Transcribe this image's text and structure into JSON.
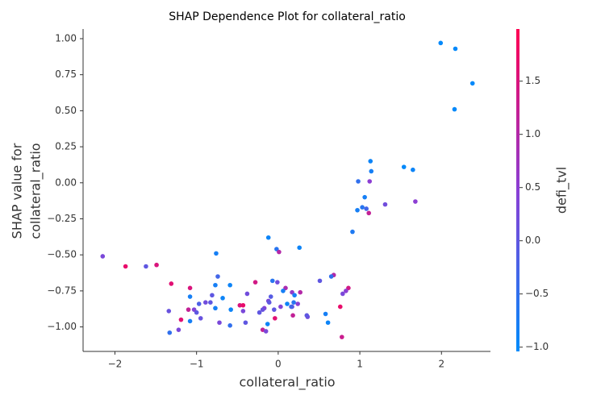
{
  "chart_data": {
    "type": "scatter",
    "title": "SHAP Dependence Plot for collateral_ratio",
    "xlabel": "collateral_ratio",
    "ylabel": [
      "SHAP value for",
      "collateral_ratio"
    ],
    "colorbar_label": "defi_tvl",
    "colormap": [
      "#008bfb",
      "#8a3fd5",
      "#ff0052"
    ],
    "clim": [
      -1.04,
      1.99
    ],
    "cticks": [
      {
        "value": -1.0,
        "label": "−1.0"
      },
      {
        "value": -0.5,
        "label": "−0.5"
      },
      {
        "value": 0.0,
        "label": "0.0"
      },
      {
        "value": 0.5,
        "label": "0.5"
      },
      {
        "value": 1.0,
        "label": "1.0"
      },
      {
        "value": 1.5,
        "label": "1.5"
      }
    ],
    "xlim": [
      -2.39,
      2.6
    ],
    "xticks": [
      {
        "value": -2,
        "label": "−2"
      },
      {
        "value": -1,
        "label": "−1"
      },
      0,
      1,
      2
    ],
    "ylim": [
      -1.17,
      1.067
    ],
    "yticks": [
      {
        "value": -1.0,
        "label": "−1.00"
      },
      {
        "value": -0.75,
        "label": "−0.75"
      },
      {
        "value": -0.5,
        "label": "−0.50"
      },
      {
        "value": -0.25,
        "label": "−0.25"
      },
      {
        "value": 0.0,
        "label": "0.00"
      },
      {
        "value": 0.25,
        "label": "0.25"
      },
      {
        "value": 0.5,
        "label": "0.50"
      },
      {
        "value": 0.75,
        "label": "0.75"
      },
      {
        "value": 1.0,
        "label": "1.00"
      }
    ],
    "x": [
      1.99,
      2.17,
      2.38,
      2.16,
      1.54,
      1.65,
      1.68,
      1.31,
      1.13,
      1.14,
      1.12,
      0.98,
      1.06,
      1.03,
      1.08,
      0.97,
      1.11,
      0.91,
      -0.12,
      -0.02,
      0.26,
      0.01,
      -0.76,
      -2.15,
      -1.87,
      -1.62,
      -1.49,
      -0.74,
      0.68,
      0.65,
      0.51,
      -1.31,
      -0.77,
      -0.59,
      -0.28,
      -0.07,
      -0.01,
      0.09,
      -1.08,
      0.86,
      0.83,
      0.06,
      0.17,
      0.27,
      0.2,
      0.79,
      -0.38,
      -0.81,
      -1.08,
      -0.68,
      -0.09,
      -0.12,
      -0.11,
      0.19,
      0.24,
      -0.89,
      -0.83,
      -0.97,
      0.11,
      0.03,
      -0.47,
      -0.43,
      0.76,
      -0.77,
      -0.17,
      0.17,
      -0.05,
      -1.03,
      -1.0,
      -0.58,
      -1.34,
      -1.1,
      -0.43,
      -0.23,
      -0.19,
      0.16,
      0.58,
      -0.95,
      -1.19,
      -1.08,
      -0.04,
      0.18,
      0.36,
      0.35,
      0.61,
      -0.72,
      -0.4,
      -0.59,
      -0.13,
      -1.22,
      -0.19,
      -0.15,
      -1.33,
      0.78
    ],
    "y": [
      0.97,
      0.93,
      0.69,
      0.51,
      0.11,
      0.09,
      -0.13,
      -0.15,
      0.15,
      0.08,
      0.01,
      0.01,
      -0.1,
      -0.17,
      -0.18,
      -0.19,
      -0.21,
      -0.34,
      -0.38,
      -0.46,
      -0.45,
      -0.48,
      -0.49,
      -0.51,
      -0.58,
      -0.58,
      -0.57,
      -0.65,
      -0.64,
      -0.65,
      -0.68,
      -0.7,
      -0.71,
      -0.71,
      -0.69,
      -0.68,
      -0.69,
      -0.73,
      -0.73,
      -0.73,
      -0.75,
      -0.75,
      -0.76,
      -0.76,
      -0.78,
      -0.77,
      -0.77,
      -0.78,
      -0.79,
      -0.8,
      -0.79,
      -0.82,
      -0.83,
      -0.83,
      -0.84,
      -0.83,
      -0.83,
      -0.84,
      -0.84,
      -0.86,
      -0.85,
      -0.85,
      -0.86,
      -0.87,
      -0.87,
      -0.86,
      -0.88,
      -0.88,
      -0.9,
      -0.88,
      -0.89,
      -0.88,
      -0.89,
      -0.9,
      -0.88,
      -0.86,
      -0.91,
      -0.94,
      -0.95,
      -0.96,
      -0.94,
      -0.92,
      -0.93,
      -0.92,
      -0.97,
      -0.97,
      -0.97,
      -0.99,
      -0.98,
      -1.02,
      -1.02,
      -1.03,
      -1.04,
      -1.07
    ],
    "c": [
      -1,
      -1,
      -1,
      -1,
      -1,
      -0.9,
      0.5,
      0.2,
      -0.9,
      -0.8,
      0.5,
      -0.5,
      -0.8,
      -0.6,
      -0.3,
      -0.8,
      1.2,
      -0.7,
      -0.9,
      -0.6,
      -0.9,
      1.0,
      -0.8,
      0.3,
      1.7,
      0.0,
      1.5,
      -0.3,
      1.0,
      -0.5,
      0.0,
      1.6,
      -0.8,
      -0.9,
      1.4,
      -0.6,
      0.2,
      0.9,
      1.5,
      1.4,
      0.5,
      -0.8,
      0.6,
      1.0,
      -0.8,
      0.3,
      0.2,
      0.0,
      -0.8,
      -0.9,
      -0.1,
      0.3,
      0.0,
      -0.6,
      0.5,
      0.2,
      0.0,
      -0.2,
      -0.9,
      0.4,
      1.5,
      1.7,
      1.7,
      -0.8,
      0.4,
      0.2,
      0.0,
      0.4,
      0.0,
      -0.9,
      0.1,
      1.2,
      0.3,
      0.0,
      0.1,
      -0.3,
      -0.8,
      0.1,
      1.6,
      -0.8,
      1.6,
      1.2,
      0.2,
      0.0,
      -0.9,
      0.3,
      0.0,
      -0.5,
      -0.9,
      0.3,
      1.2,
      0.3,
      -0.5,
      1.3
    ]
  }
}
